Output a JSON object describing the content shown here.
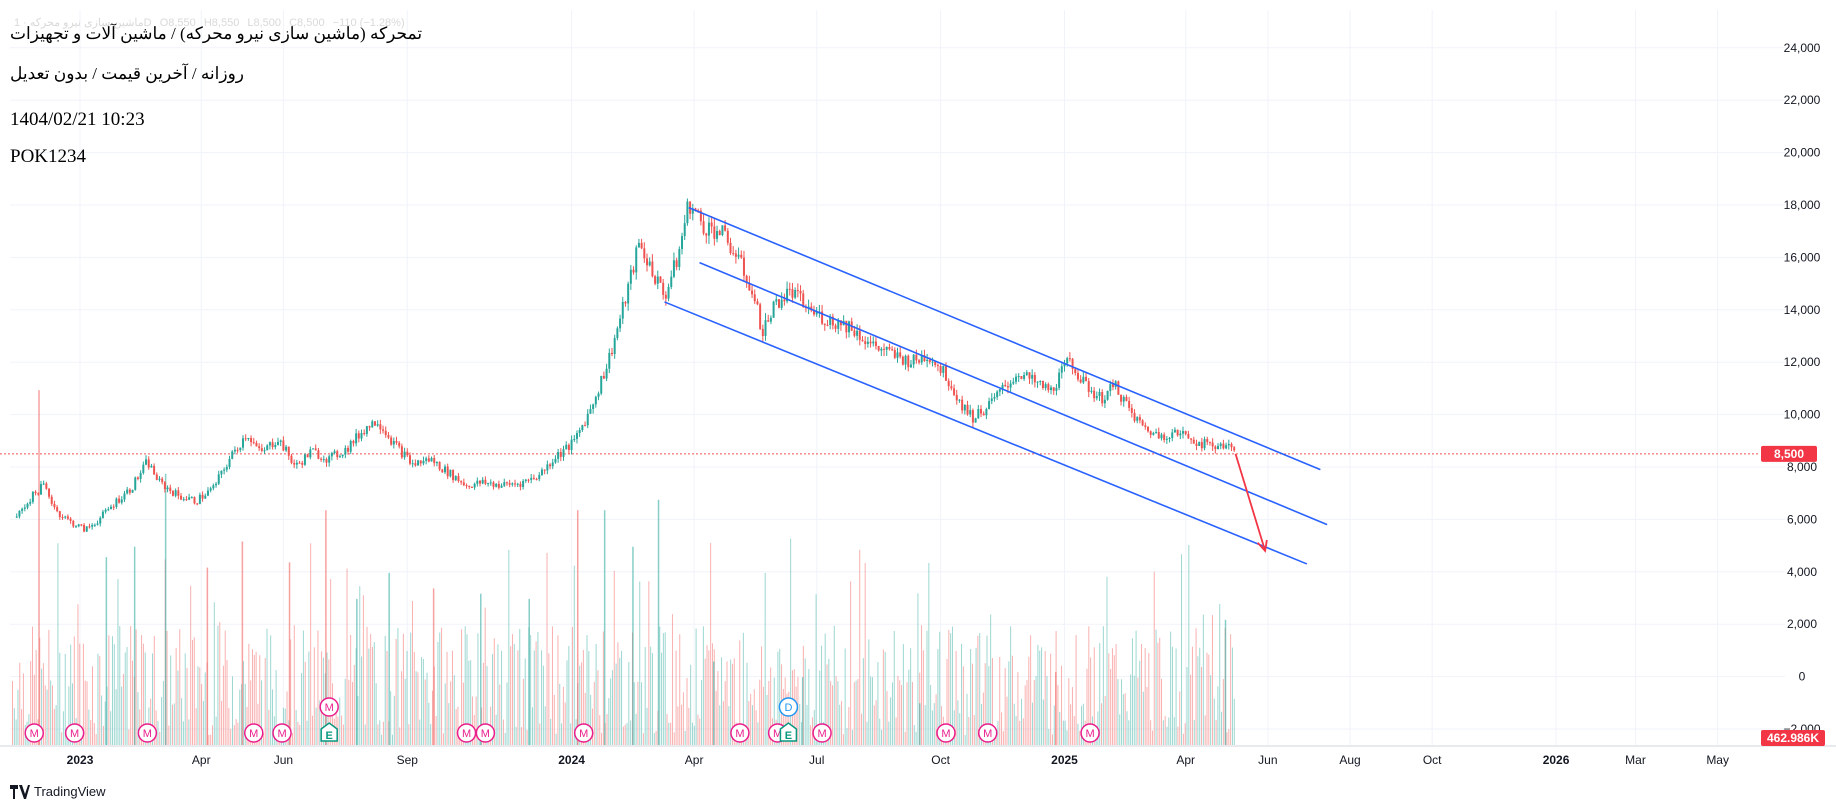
{
  "header": {
    "title": "تمحرکه (ماشین سازی نیرو محرکه) / ماشین آلات و تجهیزات",
    "subtitle": "روزانه / آخرین قیمت / بدون تعدیل",
    "datetime": "1404/02/21 10:23",
    "code": "POK1234",
    "ohlc": {
      "symbol": "ماشین سازی نیرو محرکه · 1D",
      "open": "O8,550",
      "high": "H8,550",
      "low": "L8,500",
      "close": "C8,500",
      "change": "−110 (−1.28%)"
    }
  },
  "footer": {
    "brand": "TradingView"
  },
  "colors": {
    "up": "#26a69a",
    "down": "#ef5350",
    "channel": "#2962ff",
    "arrow": "#f23645",
    "marker": "#e91e8c",
    "dividend": "#2196f3",
    "earnings": "#089981",
    "price_label_bg": "#f23645"
  },
  "chart_data": {
    "type": "candlestick",
    "title": "تمحرکه (ماشین سازی نیرو محرکه) / ماشین آلات و تجهیزات",
    "x_tick_labels": [
      "2023",
      "Apr",
      "Jun",
      "Sep",
      "2024",
      "Apr",
      "Jul",
      "Oct",
      "2025",
      "Apr",
      "Jun",
      "Aug",
      "Oct",
      "2026",
      "Mar",
      "May"
    ],
    "y_tick_labels": [
      "24,000",
      "22,000",
      "20,000",
      "18,000",
      "16,000",
      "14,000",
      "12,000",
      "10,000",
      "8,000",
      "6,000",
      "4,000",
      "2,000",
      "0",
      "−2,000"
    ],
    "ylim": [
      -2500,
      25000
    ],
    "last_price": 8500,
    "last_price_label": "8,500",
    "volume_label": "462.986K",
    "price_series": [
      {
        "date": "2022-11-15",
        "price": 6100
      },
      {
        "date": "2022-11-25",
        "price": 6800
      },
      {
        "date": "2022-12-05",
        "price": 7300
      },
      {
        "date": "2022-12-15",
        "price": 6300
      },
      {
        "date": "2022-12-25",
        "price": 5900
      },
      {
        "date": "2023-01-05",
        "price": 5600
      },
      {
        "date": "2023-01-15",
        "price": 6000
      },
      {
        "date": "2023-01-28",
        "price": 6700
      },
      {
        "date": "2023-02-08",
        "price": 7200
      },
      {
        "date": "2023-02-20",
        "price": 8200
      },
      {
        "date": "2023-03-01",
        "price": 7400
      },
      {
        "date": "2023-03-15",
        "price": 6900
      },
      {
        "date": "2023-03-28",
        "price": 6700
      },
      {
        "date": "2023-04-10",
        "price": 7200
      },
      {
        "date": "2023-04-22",
        "price": 8300
      },
      {
        "date": "2023-05-05",
        "price": 9300
      },
      {
        "date": "2023-05-15",
        "price": 8500
      },
      {
        "date": "2023-05-28",
        "price": 9100
      },
      {
        "date": "2023-06-10",
        "price": 8000
      },
      {
        "date": "2023-06-22",
        "price": 8600
      },
      {
        "date": "2023-07-05",
        "price": 8300
      },
      {
        "date": "2023-07-18",
        "price": 8700
      },
      {
        "date": "2023-08-01",
        "price": 9500
      },
      {
        "date": "2023-08-10",
        "price": 9800
      },
      {
        "date": "2023-08-22",
        "price": 8900
      },
      {
        "date": "2023-09-05",
        "price": 8100
      },
      {
        "date": "2023-09-18",
        "price": 8300
      },
      {
        "date": "2023-10-01",
        "price": 7800
      },
      {
        "date": "2023-10-15",
        "price": 7300
      },
      {
        "date": "2023-10-28",
        "price": 7400
      },
      {
        "date": "2023-11-10",
        "price": 7300
      },
      {
        "date": "2023-11-25",
        "price": 7400
      },
      {
        "date": "2023-12-08",
        "price": 7700
      },
      {
        "date": "2023-12-20",
        "price": 8400
      },
      {
        "date": "2024-01-02",
        "price": 8900
      },
      {
        "date": "2024-01-15",
        "price": 10200
      },
      {
        "date": "2024-01-28",
        "price": 12000
      },
      {
        "date": "2024-02-08",
        "price": 14000
      },
      {
        "date": "2024-02-20",
        "price": 16500
      },
      {
        "date": "2024-03-01",
        "price": 15500
      },
      {
        "date": "2024-03-10",
        "price": 14500
      },
      {
        "date": "2024-03-20",
        "price": 16000
      },
      {
        "date": "2024-03-28",
        "price": 18100
      },
      {
        "date": "2024-04-08",
        "price": 17200
      },
      {
        "date": "2024-04-20",
        "price": 17000
      },
      {
        "date": "2024-05-01",
        "price": 16200
      },
      {
        "date": "2024-05-12",
        "price": 15000
      },
      {
        "date": "2024-05-22",
        "price": 13200
      },
      {
        "date": "2024-06-01",
        "price": 14300
      },
      {
        "date": "2024-06-12",
        "price": 14700
      },
      {
        "date": "2024-06-25",
        "price": 14000
      },
      {
        "date": "2024-07-10",
        "price": 13600
      },
      {
        "date": "2024-07-25",
        "price": 13400
      },
      {
        "date": "2024-08-10",
        "price": 12700
      },
      {
        "date": "2024-08-25",
        "price": 12300
      },
      {
        "date": "2024-09-10",
        "price": 12000
      },
      {
        "date": "2024-09-22",
        "price": 12300
      },
      {
        "date": "2024-10-05",
        "price": 11500
      },
      {
        "date": "2024-10-15",
        "price": 10500
      },
      {
        "date": "2024-10-25",
        "price": 9900
      },
      {
        "date": "2024-11-05",
        "price": 10300
      },
      {
        "date": "2024-11-15",
        "price": 10900
      },
      {
        "date": "2024-11-28",
        "price": 11600
      },
      {
        "date": "2024-12-10",
        "price": 11200
      },
      {
        "date": "2024-12-22",
        "price": 10900
      },
      {
        "date": "2025-01-05",
        "price": 12100
      },
      {
        "date": "2025-01-15",
        "price": 11200
      },
      {
        "date": "2025-01-28",
        "price": 10600
      },
      {
        "date": "2025-02-08",
        "price": 11100
      },
      {
        "date": "2025-02-20",
        "price": 10000
      },
      {
        "date": "2025-03-01",
        "price": 9500
      },
      {
        "date": "2025-03-12",
        "price": 9200
      },
      {
        "date": "2025-03-22",
        "price": 9300
      },
      {
        "date": "2025-04-02",
        "price": 9200
      },
      {
        "date": "2025-04-12",
        "price": 8900
      },
      {
        "date": "2025-04-22",
        "price": 8800
      },
      {
        "date": "2025-05-01",
        "price": 8900
      },
      {
        "date": "2025-05-08",
        "price": 8500
      }
    ],
    "volume_range": [
      -2500,
      4600
    ],
    "volume_series": [
      {
        "date": "2022-12-01",
        "value": 4300,
        "dir": "down"
      },
      {
        "date": "2023-01-20",
        "value": 1100,
        "dir": "up"
      },
      {
        "date": "2023-02-10",
        "value": 1300,
        "dir": "up"
      },
      {
        "date": "2023-03-05",
        "value": 2700,
        "dir": "up"
      },
      {
        "date": "2023-04-05",
        "value": 900,
        "dir": "down"
      },
      {
        "date": "2023-05-01",
        "value": 1400,
        "dir": "down"
      },
      {
        "date": "2023-06-05",
        "value": 1000,
        "dir": "down"
      },
      {
        "date": "2023-07-02",
        "value": 2000,
        "dir": "down"
      },
      {
        "date": "2023-07-25",
        "value": 300,
        "dir": "up"
      },
      {
        "date": "2023-08-18",
        "value": 800,
        "dir": "up"
      },
      {
        "date": "2023-09-20",
        "value": 500,
        "dir": "down"
      },
      {
        "date": "2023-10-25",
        "value": 400,
        "dir": "up"
      },
      {
        "date": "2023-11-30",
        "value": 300,
        "dir": "up"
      },
      {
        "date": "2024-01-05",
        "value": 2000,
        "dir": "down"
      },
      {
        "date": "2024-01-25",
        "value": 2000,
        "dir": "up"
      },
      {
        "date": "2024-02-15",
        "value": 1300,
        "dir": "up"
      },
      {
        "date": "2024-03-05",
        "value": 2200,
        "dir": "up"
      },
      {
        "date": "2024-04-15",
        "value": -900,
        "dir": "up"
      },
      {
        "date": "2024-06-20",
        "value": -1200,
        "dir": "up"
      },
      {
        "date": "2024-09-15",
        "value": -1700,
        "dir": "up"
      },
      {
        "date": "2024-12-25",
        "value": -1100,
        "dir": "down"
      },
      {
        "date": "2025-04-30",
        "value": -100,
        "dir": "up"
      }
    ],
    "channel_lines": [
      {
        "name": "upper",
        "x1": "2024-03-28",
        "y1": 17900,
        "x2": "2025-07-10",
        "y2": 7900
      },
      {
        "name": "middle",
        "x1": "2024-04-05",
        "y1": 15800,
        "x2": "2025-07-15",
        "y2": 5800
      },
      {
        "name": "lower",
        "x1": "2024-03-10",
        "y1": 14300,
        "x2": "2025-06-30",
        "y2": 4300
      }
    ],
    "arrow": {
      "x1": "2025-05-08",
      "y1": 8500,
      "x2": "2025-05-30",
      "y2": 4800
    },
    "event_markers": [
      {
        "date": "2022-11-28",
        "label": "M",
        "row": 1
      },
      {
        "date": "2022-12-28",
        "label": "M",
        "row": 1
      },
      {
        "date": "2023-02-20",
        "label": "M",
        "row": 1
      },
      {
        "date": "2023-05-10",
        "label": "M",
        "row": 1
      },
      {
        "date": "2023-05-31",
        "label": "M",
        "row": 1
      },
      {
        "date": "2023-07-05",
        "label": "M",
        "row": 2
      },
      {
        "date": "2023-07-05",
        "label": "E",
        "row": 1,
        "kind": "earnings"
      },
      {
        "date": "2023-10-15",
        "label": "M",
        "row": 1
      },
      {
        "date": "2023-10-29",
        "label": "M",
        "row": 1
      },
      {
        "date": "2024-01-10",
        "label": "M",
        "row": 1
      },
      {
        "date": "2024-05-05",
        "label": "M",
        "row": 1
      },
      {
        "date": "2024-06-02",
        "label": "M",
        "row": 1
      },
      {
        "date": "2024-06-10",
        "label": "E",
        "row": 1,
        "kind": "earnings"
      },
      {
        "date": "2024-06-10",
        "label": "D",
        "row": 2,
        "kind": "dividend"
      },
      {
        "date": "2024-07-05",
        "label": "M",
        "row": 1
      },
      {
        "date": "2024-10-05",
        "label": "M",
        "row": 1
      },
      {
        "date": "2024-11-05",
        "label": "M",
        "row": 1
      },
      {
        "date": "2025-01-20",
        "label": "M",
        "row": 1
      }
    ]
  }
}
